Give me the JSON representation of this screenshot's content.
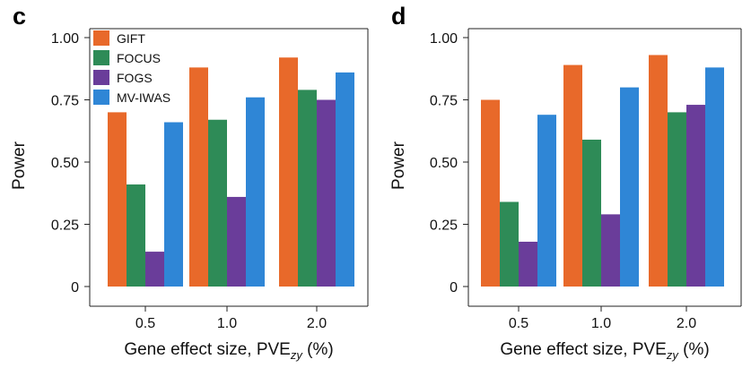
{
  "chart_data": [
    {
      "type": "bar",
      "panel_label": "c",
      "categories": [
        "0.5",
        "1.0",
        "2.0"
      ],
      "series": [
        {
          "name": "GIFT",
          "color": "#E8692A",
          "values": [
            0.7,
            0.88,
            0.92
          ]
        },
        {
          "name": "FOCUS",
          "color": "#2E8B57",
          "values": [
            0.41,
            0.67,
            0.79
          ]
        },
        {
          "name": "FOGS",
          "color": "#6A3D9A",
          "values": [
            0.14,
            0.36,
            0.75
          ]
        },
        {
          "name": "MV-IWAS",
          "color": "#2F86D6",
          "values": [
            0.66,
            0.76,
            0.86
          ]
        }
      ],
      "xlabel_main": "Gene effect size, PVE",
      "xlabel_sub": "zy",
      "xlabel_tail": " (%)",
      "ylabel": "Power",
      "ylim": [
        0,
        1.0
      ],
      "yticks": [
        "0",
        "0.25",
        "0.50",
        "0.75",
        "1.00"
      ],
      "ytick_values": [
        0,
        0.25,
        0.5,
        0.75,
        1.0
      ],
      "legend": "top-left",
      "grid": false
    },
    {
      "type": "bar",
      "panel_label": "d",
      "categories": [
        "0.5",
        "1.0",
        "2.0"
      ],
      "series": [
        {
          "name": "GIFT",
          "color": "#E8692A",
          "values": [
            0.75,
            0.89,
            0.93
          ]
        },
        {
          "name": "FOCUS",
          "color": "#2E8B57",
          "values": [
            0.34,
            0.59,
            0.7
          ]
        },
        {
          "name": "FOGS",
          "color": "#6A3D9A",
          "values": [
            0.18,
            0.29,
            0.73
          ]
        },
        {
          "name": "MV-IWAS",
          "color": "#2F86D6",
          "values": [
            0.69,
            0.8,
            0.88
          ]
        }
      ],
      "xlabel_main": "Gene effect size, PVE",
      "xlabel_sub": "zy",
      "xlabel_tail": " (%)",
      "ylabel": "Power",
      "ylim": [
        0,
        1.0
      ],
      "yticks": [
        "0",
        "0.25",
        "0.50",
        "0.75",
        "1.00"
      ],
      "ytick_values": [
        0,
        0.25,
        0.5,
        0.75,
        1.0
      ],
      "grid": false
    }
  ]
}
